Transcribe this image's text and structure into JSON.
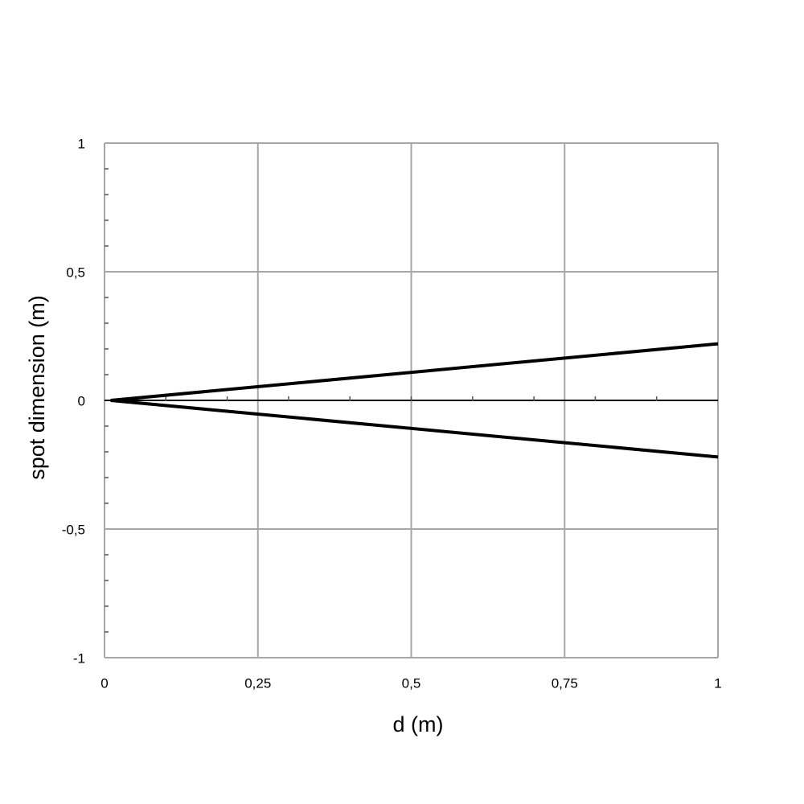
{
  "chart_data": {
    "type": "line",
    "x_label": "d (m)",
    "y_label": "spot dimension (m)",
    "x": [
      0.01,
      1
    ],
    "series": [
      {
        "color": "#000000",
        "values": [
          0,
          0.22
        ]
      },
      {
        "color": "#000000",
        "values": [
          0,
          -0.22
        ]
      }
    ],
    "xlim": [
      0,
      1
    ],
    "ylim": [
      -1,
      1
    ],
    "xticks": [
      0,
      {
        "value": 0.25,
        "label": "0,25"
      },
      {
        "value": 0.5,
        "label": "0,5"
      },
      {
        "value": 0.75,
        "label": "0,75"
      },
      1
    ],
    "yticks": [
      -1,
      {
        "value": -0.5,
        "label": "-0,5"
      },
      0,
      {
        "value": 0.5,
        "label": "0,5"
      },
      1
    ],
    "x_minor_ticks": [
      0.1,
      0.2,
      0.3,
      0.4,
      0.5,
      0.6,
      0.7,
      0.8,
      0.9
    ],
    "y_minor_ticks": [
      -0.9,
      -0.8,
      -0.7,
      -0.6,
      -0.4,
      -0.3,
      -0.2,
      -0.1,
      0.1,
      0.2,
      0.3,
      0.4,
      0.6,
      0.7,
      0.8,
      0.9
    ],
    "grid": true
  }
}
